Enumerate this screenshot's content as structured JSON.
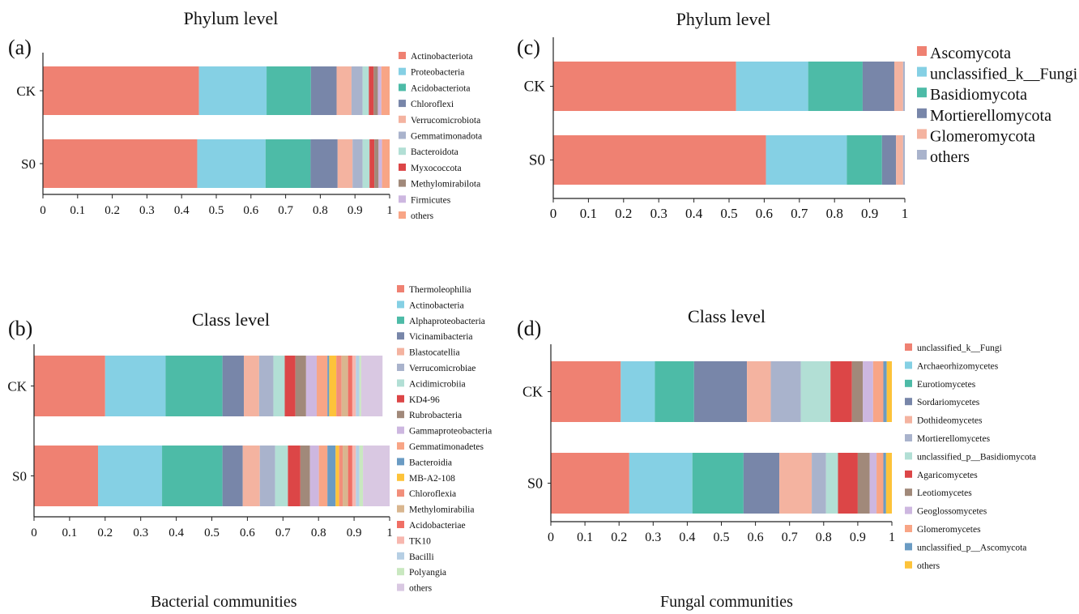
{
  "captions": {
    "bacterial": "Bacterial communities",
    "fungal": "Fungal communities"
  },
  "chart_data": [
    {
      "type": "bar",
      "orientation": "horizontal",
      "stacked": true,
      "panel_label": "(a)",
      "title": "Phylum level",
      "categories": [
        "CK",
        "S0"
      ],
      "xlim": [
        0,
        1
      ],
      "xticks": [
        "0",
        "0.1",
        "0.2",
        "0.3",
        "0.4",
        "0.5",
        "0.6",
        "0.7",
        "0.8",
        "0.9",
        "1"
      ],
      "legend_position": "right",
      "series": [
        {
          "name": "Actinobacteriota",
          "color": "#EF8172",
          "values": [
            0.45,
            0.445
          ]
        },
        {
          "name": "Proteobacteria",
          "color": "#85D0E4",
          "values": [
            0.195,
            0.197
          ]
        },
        {
          "name": "Acidobacteriota",
          "color": "#4DBBA7",
          "values": [
            0.128,
            0.13
          ]
        },
        {
          "name": "Chloroflexi",
          "color": "#7886A9",
          "values": [
            0.074,
            0.078
          ]
        },
        {
          "name": "Verrucomicrobiota",
          "color": "#F4B3A0",
          "values": [
            0.043,
            0.043
          ]
        },
        {
          "name": "Gemmatimonadota",
          "color": "#A9B3CC",
          "values": [
            0.032,
            0.029
          ]
        },
        {
          "name": "Bacteroidota",
          "color": "#B2DFD5",
          "values": [
            0.018,
            0.02
          ]
        },
        {
          "name": "Myxococcota",
          "color": "#DC4647",
          "values": [
            0.014,
            0.014
          ]
        },
        {
          "name": "Methylomirabilota",
          "color": "#A1897A",
          "values": [
            0.012,
            0.012
          ]
        },
        {
          "name": "Firmicutes",
          "color": "#CDB7E0",
          "values": [
            0.01,
            0.01
          ]
        },
        {
          "name": "others",
          "color": "#F8A586",
          "values": [
            0.024,
            0.022
          ]
        }
      ]
    },
    {
      "type": "bar",
      "orientation": "horizontal",
      "stacked": true,
      "panel_label": "(b)",
      "title": "Class level",
      "categories": [
        "CK",
        "S0"
      ],
      "xlim": [
        0,
        1
      ],
      "xticks": [
        "0",
        "0.1",
        "0.2",
        "0.3",
        "0.4",
        "0.5",
        "0.6",
        "0.7",
        "0.8",
        "0.9",
        "1"
      ],
      "legend_position": "right",
      "series": [
        {
          "name": "Thermoleophilia",
          "color": "#EF8172",
          "values": [
            0.2,
            0.18
          ]
        },
        {
          "name": "Actinobacteria",
          "color": "#85D0E4",
          "values": [
            0.17,
            0.18
          ]
        },
        {
          "name": "Alphaproteobacteria",
          "color": "#4DBBA7",
          "values": [
            0.16,
            0.17
          ]
        },
        {
          "name": "Vicinamibacteria",
          "color": "#7886A9",
          "values": [
            0.06,
            0.057
          ]
        },
        {
          "name": "Blastocatellia",
          "color": "#F4B3A0",
          "values": [
            0.043,
            0.048
          ]
        },
        {
          "name": "Verrucomicrobiae",
          "color": "#A9B3CC",
          "values": [
            0.04,
            0.043
          ]
        },
        {
          "name": "Acidimicrobiia",
          "color": "#B2DFD5",
          "values": [
            0.032,
            0.036
          ]
        },
        {
          "name": "KD4-96",
          "color": "#DC4647",
          "values": [
            0.03,
            0.035
          ]
        },
        {
          "name": "Rubrobacteria",
          "color": "#A1897A",
          "values": [
            0.03,
            0.027
          ]
        },
        {
          "name": "Gammaproteobacteria",
          "color": "#CDB7E0",
          "values": [
            0.03,
            0.025
          ]
        },
        {
          "name": "Gemmatimonadetes",
          "color": "#F8A586",
          "values": [
            0.03,
            0.024
          ]
        },
        {
          "name": "Bacteroidia",
          "color": "#6A9BC3",
          "values": [
            0.005,
            0.023
          ]
        },
        {
          "name": "MB-A2-108",
          "color": "#FDC33A",
          "values": [
            0.02,
            0.01
          ]
        },
        {
          "name": "Chloroflexia",
          "color": "#F28E7A",
          "values": [
            0.015,
            0.01
          ]
        },
        {
          "name": "Methylomirabilia",
          "color": "#D9B68F",
          "values": [
            0.018,
            0.015
          ]
        },
        {
          "name": "Acidobacteriae",
          "color": "#F06F65",
          "values": [
            0.012,
            0.012
          ]
        },
        {
          "name": "TK10",
          "color": "#F7B7AF",
          "values": [
            0.01,
            0.01
          ]
        },
        {
          "name": "Bacilli",
          "color": "#B6CFE4",
          "values": [
            0.01,
            0.01
          ]
        },
        {
          "name": "Polyangia",
          "color": "#C9E8C0",
          "values": [
            0.005,
            0.01
          ]
        },
        {
          "name": "others",
          "color": "#D9C8E2",
          "values": [
            0.06,
            0.075
          ]
        }
      ]
    },
    {
      "type": "bar",
      "orientation": "horizontal",
      "stacked": true,
      "panel_label": "(c)",
      "title": "Phylum level",
      "categories": [
        "CK",
        "S0"
      ],
      "xlim": [
        0,
        1
      ],
      "xticks": [
        "0",
        "0.1",
        "0.2",
        "0.3",
        "0.4",
        "0.5",
        "0.6",
        "0.7",
        "0.8",
        "0.9",
        "1"
      ],
      "legend_position": "right",
      "series": [
        {
          "name": "Ascomycota",
          "color": "#EF8172",
          "values": [
            0.52,
            0.605
          ]
        },
        {
          "name": "unclassified_k__Fungi",
          "color": "#85D0E4",
          "values": [
            0.205,
            0.23
          ]
        },
        {
          "name": "Basidiomycota",
          "color": "#4DBBA7",
          "values": [
            0.155,
            0.1
          ]
        },
        {
          "name": "Mortierellomycota",
          "color": "#7886A9",
          "values": [
            0.09,
            0.04
          ]
        },
        {
          "name": "Glomeromycota",
          "color": "#F4B3A0",
          "values": [
            0.025,
            0.02
          ]
        },
        {
          "name": "others",
          "color": "#A9B3CC",
          "values": [
            0.005,
            0.005
          ]
        }
      ]
    },
    {
      "type": "bar",
      "orientation": "horizontal",
      "stacked": true,
      "panel_label": "(d)",
      "title": "Class level",
      "categories": [
        "CK",
        "S0"
      ],
      "xlim": [
        0,
        1
      ],
      "xticks": [
        "0",
        "0.1",
        "0.2",
        "0.3",
        "0.4",
        "0.5",
        "0.6",
        "0.7",
        "0.8",
        "0.9",
        "1"
      ],
      "legend_position": "right",
      "series": [
        {
          "name": "unclassified_k__Fungi",
          "color": "#EF8172",
          "values": [
            0.205,
            0.23
          ]
        },
        {
          "name": "Archaeorhizomycetes",
          "color": "#85D0E4",
          "values": [
            0.1,
            0.185
          ]
        },
        {
          "name": "Eurotiomycetes",
          "color": "#4DBBA7",
          "values": [
            0.115,
            0.15
          ]
        },
        {
          "name": "Sordariomycetes",
          "color": "#7886A9",
          "values": [
            0.155,
            0.105
          ]
        },
        {
          "name": "Dothideomycetes",
          "color": "#F4B3A0",
          "values": [
            0.07,
            0.095
          ]
        },
        {
          "name": "Mortierellomycetes",
          "color": "#A9B3CC",
          "values": [
            0.088,
            0.042
          ]
        },
        {
          "name": "unclassified_p__Basidiomycota",
          "color": "#B2DFD5",
          "values": [
            0.087,
            0.035
          ]
        },
        {
          "name": "Agaricomycetes",
          "color": "#DC4647",
          "values": [
            0.063,
            0.058
          ]
        },
        {
          "name": "Leotiomycetes",
          "color": "#A1897A",
          "values": [
            0.032,
            0.035
          ]
        },
        {
          "name": "Geoglossomycetes",
          "color": "#CDB7E0",
          "values": [
            0.03,
            0.02
          ]
        },
        {
          "name": "Glomeromycetes",
          "color": "#F8A586",
          "values": [
            0.03,
            0.02
          ]
        },
        {
          "name": "unclassified_p__Ascomycota",
          "color": "#6A9BC3",
          "values": [
            0.01,
            0.008
          ]
        },
        {
          "name": "others",
          "color": "#FDC33A",
          "values": [
            0.015,
            0.017
          ]
        }
      ]
    }
  ]
}
